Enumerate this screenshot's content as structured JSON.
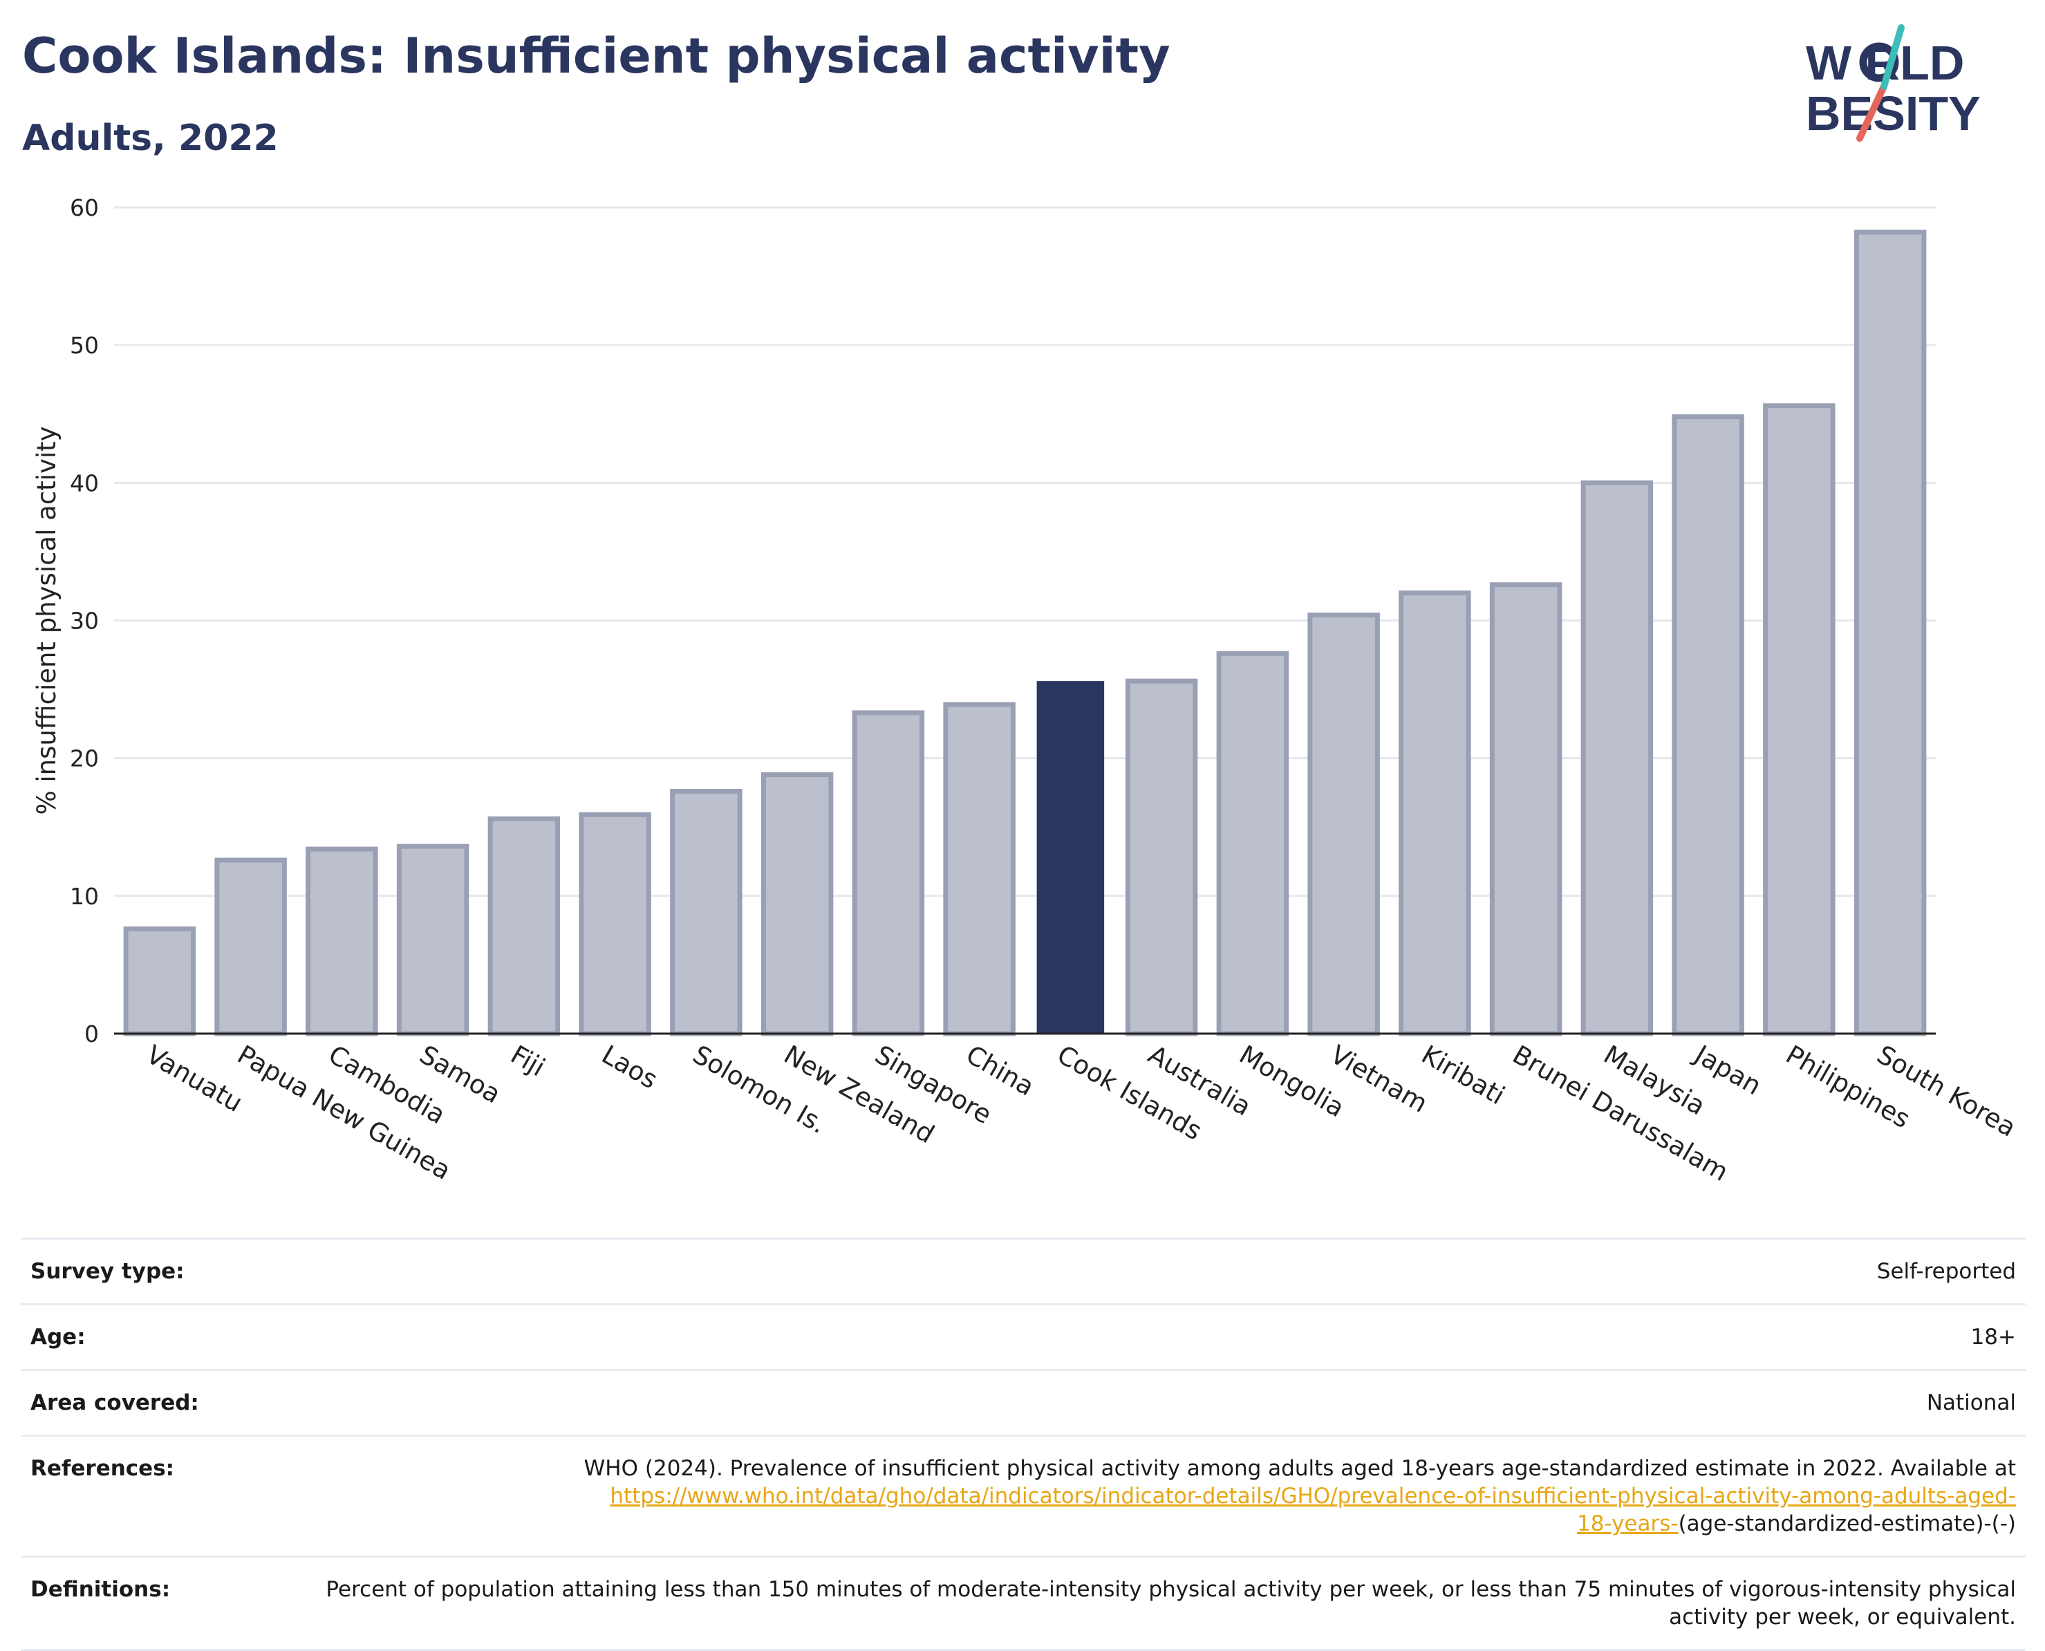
{
  "header": {
    "title": "Cook Islands: Insufficient physical activity",
    "subtitle": "Adults, 2022"
  },
  "logo": {
    "line1": "W RLD",
    "line2": "BESITY",
    "brand_color": "#2b3660",
    "accent_colors": [
      "#3cbdb8",
      "#e4665a"
    ]
  },
  "colors": {
    "highlight_bar": "#2b3660",
    "other_bar_fill": "#bcc0cd",
    "other_bar_stroke": "#9aa0b4",
    "link": "#e7a614"
  },
  "chart_data": {
    "type": "bar",
    "title": "",
    "xlabel": "",
    "ylabel": "% insufficient physical activity",
    "ylim": [
      0,
      60
    ],
    "yticks": [
      0,
      10,
      20,
      30,
      40,
      50,
      60
    ],
    "grid": true,
    "highlight": "Cook Islands",
    "categories": [
      "Vanuatu",
      "Papua New Guinea",
      "Cambodia",
      "Samoa",
      "Fiji",
      "Laos",
      "Solomon Is.",
      "New Zealand",
      "Singapore",
      "China",
      "Cook Islands",
      "Australia",
      "Mongolia",
      "Vietnam",
      "Kiribati",
      "Brunei Darussalam",
      "Malaysia",
      "Japan",
      "Philippines",
      "South Korea"
    ],
    "values": [
      7.6,
      12.6,
      13.4,
      13.6,
      15.6,
      15.9,
      17.6,
      18.8,
      23.3,
      23.9,
      25.6,
      25.6,
      27.6,
      30.4,
      32.0,
      32.6,
      40.0,
      44.8,
      45.6,
      58.2
    ]
  },
  "info": {
    "survey_type_label": "Survey type:",
    "survey_type_value": "Self-reported",
    "age_label": "Age:",
    "age_value": "18+",
    "area_label": "Area covered:",
    "area_value": "National",
    "references_label": "References:",
    "references_text": "WHO (2024). Prevalence of insufficient physical activity among adults aged 18-years age-standardized estimate in 2022. Available at",
    "references_link_line1": "https://www.who.int/data/gho/data/indicators/indicator-details/GHO/prevalence-of-insufficient-physical-activity-among-adults-aged-",
    "references_link_line2": "18-years-",
    "references_tail": "(age-standardized-estimate)-(-)",
    "definitions_label": "Definitions:",
    "definitions_text": "Percent of population attaining less than 150 minutes of moderate-intensity physical activity per week, or less than 75 minutes of vigorous-intensity physical activity per week, or equivalent."
  }
}
